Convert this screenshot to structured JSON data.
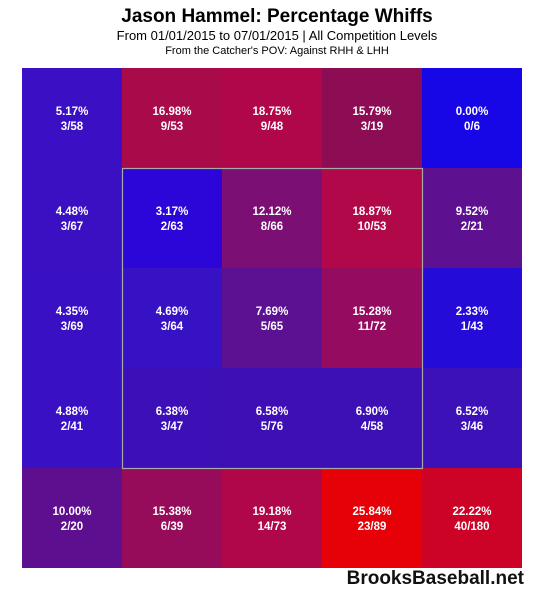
{
  "chart_data": {
    "type": "heatmap",
    "title": "Jason Hammel: Percentage Whiffs",
    "subtitle": "From 01/01/2015 to 07/01/2015 | All Competition Levels",
    "subtitle2": "From the Catcher's POV:   Against RHH & LHH",
    "rows": [
      [
        {
          "pct": "5.17%",
          "count": "3/58",
          "value": 5.17
        },
        {
          "pct": "16.98%",
          "count": "9/53",
          "value": 16.98
        },
        {
          "pct": "18.75%",
          "count": "9/48",
          "value": 18.75
        },
        {
          "pct": "15.79%",
          "count": "3/19",
          "value": 15.79
        },
        {
          "pct": "0.00%",
          "count": "0/6",
          "value": 0.0
        }
      ],
      [
        {
          "pct": "4.48%",
          "count": "3/67",
          "value": 4.48
        },
        {
          "pct": "3.17%",
          "count": "2/63",
          "value": 3.17
        },
        {
          "pct": "12.12%",
          "count": "8/66",
          "value": 12.12
        },
        {
          "pct": "18.87%",
          "count": "10/53",
          "value": 18.87
        },
        {
          "pct": "9.52%",
          "count": "2/21",
          "value": 9.52
        }
      ],
      [
        {
          "pct": "4.35%",
          "count": "3/69",
          "value": 4.35
        },
        {
          "pct": "4.69%",
          "count": "3/64",
          "value": 4.69
        },
        {
          "pct": "7.69%",
          "count": "5/65",
          "value": 7.69
        },
        {
          "pct": "15.28%",
          "count": "11/72",
          "value": 15.28
        },
        {
          "pct": "2.33%",
          "count": "1/43",
          "value": 2.33
        }
      ],
      [
        {
          "pct": "4.88%",
          "count": "2/41",
          "value": 4.88
        },
        {
          "pct": "6.38%",
          "count": "3/47",
          "value": 6.38
        },
        {
          "pct": "6.58%",
          "count": "5/76",
          "value": 6.58
        },
        {
          "pct": "6.90%",
          "count": "4/58",
          "value": 6.9
        },
        {
          "pct": "6.52%",
          "count": "3/46",
          "value": 6.52
        }
      ],
      [
        {
          "pct": "10.00%",
          "count": "2/20",
          "value": 10.0
        },
        {
          "pct": "15.38%",
          "count": "6/39",
          "value": 15.38
        },
        {
          "pct": "19.18%",
          "count": "14/73",
          "value": 19.18
        },
        {
          "pct": "25.84%",
          "count": "23/89",
          "value": 25.84
        },
        {
          "pct": "22.22%",
          "count": "40/180",
          "value": 22.22
        }
      ]
    ],
    "colors": [
      [
        "#3b10c4",
        "#a80a4a",
        "#b0074a",
        "#8d0d55",
        "#1707e6"
      ],
      [
        "#3a10c2",
        "#2c06d8",
        "#7b0f74",
        "#b00848",
        "#5d1190"
      ],
      [
        "#3a10c4",
        "#3712c4",
        "#5b1191",
        "#950b60",
        "#250bd8"
      ],
      [
        "#3a10c4",
        "#3d10b7",
        "#3e0fb5",
        "#3d10b5",
        "#3d11b8"
      ],
      [
        "#5e0f8f",
        "#970c5a",
        "#b0064a",
        "#e60108",
        "#cc0326"
      ]
    ],
    "strike_zone": "center 3x3"
  },
  "watermark": "BrooksBaseball.net"
}
